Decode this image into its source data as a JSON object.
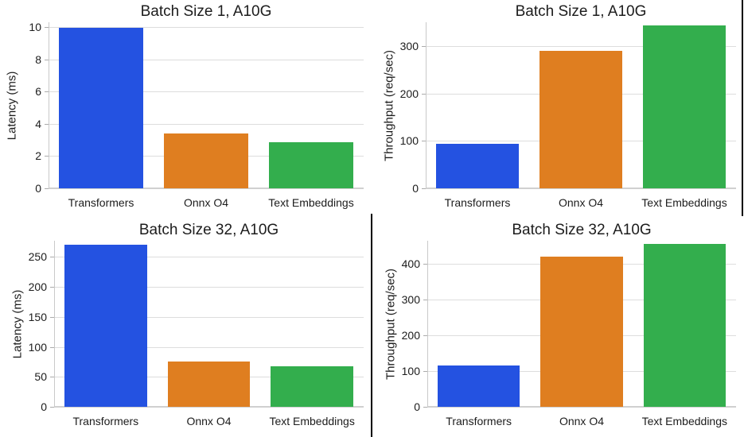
{
  "palette": {
    "background": "#FFFFFF",
    "text": "#1C1C1C",
    "grid": "#DDDDDD",
    "axis_line": "#D0D0D0",
    "spine": "#C9C9C9",
    "tick": "#ABABAB",
    "divider": "#000000",
    "bar_blue": "#2452E1",
    "bar_orange": "#DF7E20",
    "bar_green": "#33AE4D"
  },
  "chart_data": [
    {
      "type": "bar",
      "title": "Batch Size 1, A10G",
      "xlabel": "",
      "ylabel": "Latency (ms)",
      "categories": [
        "Transformers",
        "Onnx O4",
        "Text Embeddings"
      ],
      "values": [
        9.97,
        3.4,
        2.85
      ],
      "yticks": [
        0,
        2,
        4,
        6,
        8,
        10
      ],
      "ylim": [
        0,
        10.3
      ],
      "grid": true,
      "legend": false,
      "bar_colors": [
        "#2452E1",
        "#DF7E20",
        "#33AE4D"
      ]
    },
    {
      "type": "bar",
      "title": "Batch Size 1, A10G",
      "xlabel": "",
      "ylabel": "Throughput (req/sec)",
      "categories": [
        "Transformers",
        "Onnx O4",
        "Text Embeddings"
      ],
      "values": [
        93,
        289,
        344
      ],
      "yticks": [
        0,
        100,
        200,
        300
      ],
      "ylim": [
        0,
        350
      ],
      "grid": true,
      "legend": false,
      "bar_colors": [
        "#2452E1",
        "#DF7E20",
        "#33AE4D"
      ]
    },
    {
      "type": "bar",
      "title": "Batch Size 32, A10G",
      "xlabel": "",
      "ylabel": "Latency (ms)",
      "categories": [
        "Transformers",
        "Onnx O4",
        "Text Embeddings"
      ],
      "values": [
        270,
        75,
        68
      ],
      "yticks": [
        0,
        50,
        100,
        150,
        200,
        250
      ],
      "ylim": [
        0,
        277
      ],
      "grid": true,
      "legend": false,
      "bar_colors": [
        "#2452E1",
        "#DF7E20",
        "#33AE4D"
      ]
    },
    {
      "type": "bar",
      "title": "Batch Size 32, A10G",
      "xlabel": "",
      "ylabel": "Throughput (req/sec)",
      "categories": [
        "Transformers",
        "Onnx O4",
        "Text Embeddings"
      ],
      "values": [
        116,
        420,
        457
      ],
      "yticks": [
        0,
        100,
        200,
        300,
        400
      ],
      "ylim": [
        0,
        465
      ],
      "grid": true,
      "legend": false,
      "bar_colors": [
        "#2452E1",
        "#DF7E20",
        "#33AE4D"
      ]
    }
  ]
}
